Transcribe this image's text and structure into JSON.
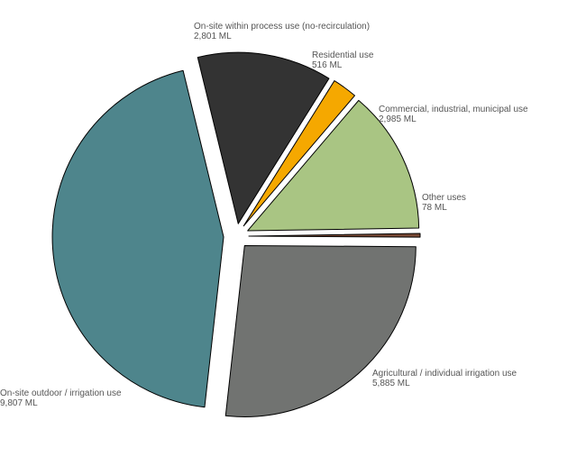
{
  "chart_data": {
    "type": "pie",
    "title": "",
    "unit": "ML",
    "slices": [
      {
        "name": "Residential use",
        "value": 516,
        "value_label": "516 ML",
        "color": "#f5a800"
      },
      {
        "name": "Commercial, industrial, municipal use",
        "value": 2985,
        "value_label": "2,985 ML",
        "color": "#a9c583"
      },
      {
        "name": "Other uses",
        "value": 78,
        "value_label": "78 ML",
        "color": "#7a4a36"
      },
      {
        "name": "Agricultural / individual irrigation use",
        "value": 5885,
        "value_label": "5,885 ML",
        "color": "#717371"
      },
      {
        "name": "On-site outdoor / irrigation use",
        "value": 9807,
        "value_label": "9,807 ML",
        "color": "#4e858c"
      },
      {
        "name": "On-site within process use (no-recirculation)",
        "value": 2801,
        "value_label": "2,801 ML",
        "color": "#333333"
      }
    ],
    "legend": "none"
  }
}
